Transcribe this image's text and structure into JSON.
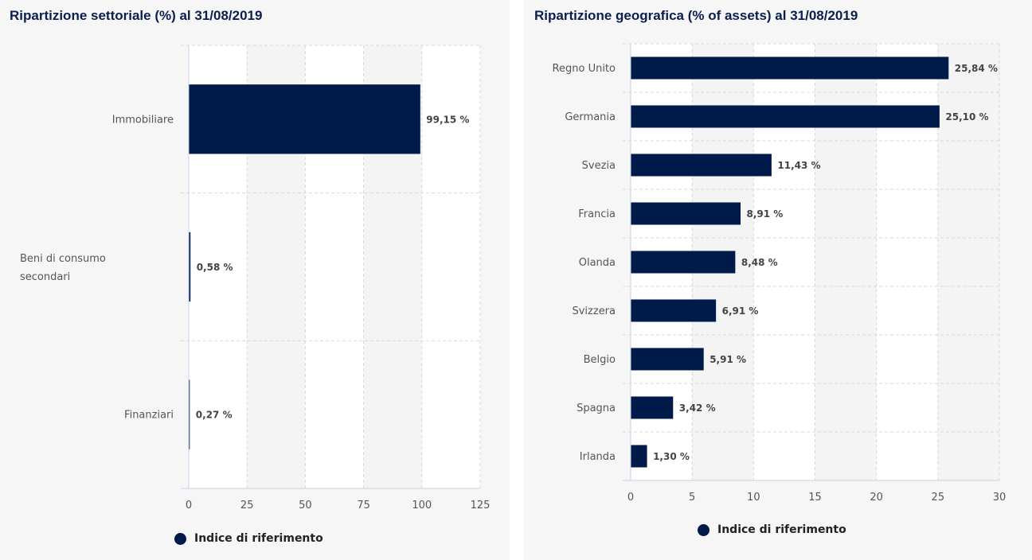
{
  "colors": {
    "bar": "#001a4a",
    "title": "#0a1f4d",
    "band_alt": "#f4f4f4",
    "band": "#ffffff",
    "axis": "#c5d3ea",
    "grid": "#d9d9d9"
  },
  "chart_data": [
    {
      "type": "bar",
      "orientation": "horizontal",
      "title": "Ripartizione settoriale (%) al 31/08/2019",
      "categories": [
        "Immobiliare",
        "Beni di consumo secondari",
        "Finanziari"
      ],
      "category_lines": [
        [
          "Immobiliare"
        ],
        [
          "Beni di consumo",
          "secondari"
        ],
        [
          "Finanziari"
        ]
      ],
      "values": [
        99.15,
        0.58,
        0.27
      ],
      "value_labels": [
        "99,15 %",
        "0,58 %",
        "0,27 %"
      ],
      "xlim": [
        0,
        125
      ],
      "xticks": [
        0,
        25,
        50,
        75,
        100,
        125
      ],
      "xlabel": "",
      "ylabel": "",
      "grid": true,
      "legend": {
        "entries": [
          "Indice di riferimento"
        ],
        "position": "bottom-left"
      }
    },
    {
      "type": "bar",
      "orientation": "horizontal",
      "title": "Ripartizione geografica (% of assets) al 31/08/2019",
      "categories": [
        "Regno Unito",
        "Germania",
        "Svezia",
        "Francia",
        "Olanda",
        "Svizzera",
        "Belgio",
        "Spagna",
        "Irlanda"
      ],
      "category_lines": [
        [
          "Regno Unito"
        ],
        [
          "Germania"
        ],
        [
          "Svezia"
        ],
        [
          "Francia"
        ],
        [
          "Olanda"
        ],
        [
          "Svizzera"
        ],
        [
          "Belgio"
        ],
        [
          "Spagna"
        ],
        [
          "Irlanda"
        ]
      ],
      "values": [
        25.84,
        25.1,
        11.43,
        8.91,
        8.48,
        6.91,
        5.91,
        3.42,
        1.3
      ],
      "value_labels": [
        "25,84 %",
        "25,10 %",
        "11,43 %",
        "8,91 %",
        "8,48 %",
        "6,91 %",
        "5,91 %",
        "3,42 %",
        "1,30 %"
      ],
      "xlim": [
        0,
        30
      ],
      "xticks": [
        0,
        5,
        10,
        15,
        20,
        25,
        30
      ],
      "xlabel": "",
      "ylabel": "",
      "grid": true,
      "legend": {
        "entries": [
          "Indice di riferimento"
        ],
        "position": "bottom-center"
      }
    }
  ]
}
